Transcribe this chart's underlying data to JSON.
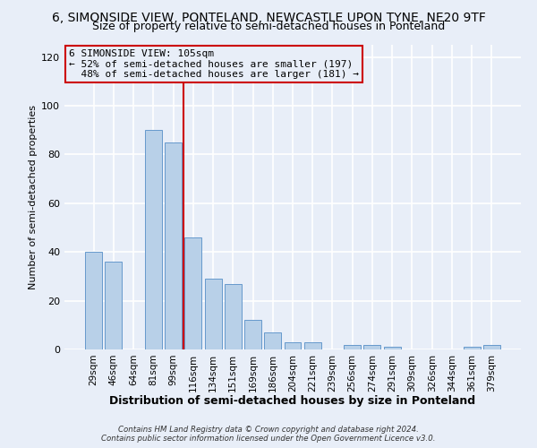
{
  "title": "6, SIMONSIDE VIEW, PONTELAND, NEWCASTLE UPON TYNE, NE20 9TF",
  "subtitle": "Size of property relative to semi-detached houses in Ponteland",
  "xlabel": "Distribution of semi-detached houses by size in Ponteland",
  "ylabel": "Number of semi-detached properties",
  "categories": [
    "29sqm",
    "46sqm",
    "64sqm",
    "81sqm",
    "99sqm",
    "116sqm",
    "134sqm",
    "151sqm",
    "169sqm",
    "186sqm",
    "204sqm",
    "221sqm",
    "239sqm",
    "256sqm",
    "274sqm",
    "291sqm",
    "309sqm",
    "326sqm",
    "344sqm",
    "361sqm",
    "379sqm"
  ],
  "values": [
    40,
    36,
    0,
    90,
    85,
    46,
    29,
    27,
    12,
    7,
    3,
    3,
    0,
    2,
    2,
    1,
    0,
    0,
    0,
    1,
    2
  ],
  "bar_color": "#b8d0e8",
  "bar_edge_color": "#6699cc",
  "property_line_x": 4.5,
  "property_label": "6 SIMONSIDE VIEW: 105sqm",
  "pct_smaller": 52,
  "count_smaller": 197,
  "pct_larger": 48,
  "count_larger": 181,
  "annotation_line_color": "#cc0000",
  "annotation_box_edge_color": "#cc0000",
  "ylim": [
    0,
    125
  ],
  "yticks": [
    0,
    20,
    40,
    60,
    80,
    100,
    120
  ],
  "footer_line1": "Contains HM Land Registry data © Crown copyright and database right 2024.",
  "footer_line2": "Contains public sector information licensed under the Open Government Licence v3.0.",
  "bg_color": "#e8eef8",
  "title_fontsize": 10,
  "subtitle_fontsize": 9,
  "xlabel_fontsize": 9,
  "ylabel_fontsize": 8
}
